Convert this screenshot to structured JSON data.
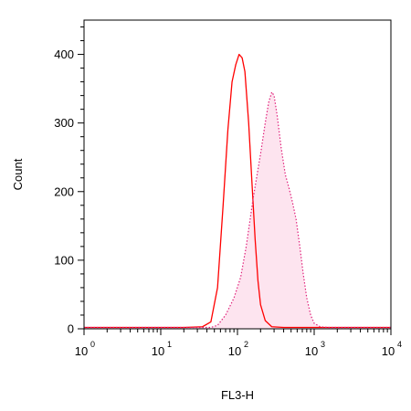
{
  "chart_data": {
    "type": "area",
    "title": "",
    "xlabel": "FL3-H",
    "ylabel": "Count",
    "x_scale": "log",
    "xlim": [
      1,
      10000
    ],
    "ylim": [
      0,
      450
    ],
    "x_ticks": [
      {
        "value": 1,
        "base": "10",
        "exp": "0"
      },
      {
        "value": 10,
        "base": "10",
        "exp": "1"
      },
      {
        "value": 100,
        "base": "10",
        "exp": "2"
      },
      {
        "value": 1000,
        "base": "10",
        "exp": "3"
      },
      {
        "value": 10000,
        "base": "10",
        "exp": "4"
      }
    ],
    "y_ticks": [
      {
        "value": 0,
        "label": "0"
      },
      {
        "value": 100,
        "label": "100"
      },
      {
        "value": 200,
        "label": "200"
      },
      {
        "value": 300,
        "label": "300"
      },
      {
        "value": 400,
        "label": "400"
      }
    ],
    "grid": false,
    "series": [
      {
        "style": "solid",
        "color": "#ff0000",
        "fill": false,
        "points": [
          [
            1,
            2
          ],
          [
            5,
            2
          ],
          [
            20,
            2
          ],
          [
            35,
            3
          ],
          [
            45,
            10
          ],
          [
            55,
            60
          ],
          [
            65,
            180
          ],
          [
            75,
            290
          ],
          [
            85,
            360
          ],
          [
            95,
            385
          ],
          [
            105,
            400
          ],
          [
            115,
            395
          ],
          [
            125,
            375
          ],
          [
            140,
            300
          ],
          [
            155,
            210
          ],
          [
            170,
            130
          ],
          [
            185,
            70
          ],
          [
            200,
            35
          ],
          [
            230,
            12
          ],
          [
            280,
            3
          ],
          [
            400,
            2
          ],
          [
            1000,
            2
          ],
          [
            10000,
            2
          ]
        ]
      },
      {
        "style": "dotted",
        "color": "#e0207a",
        "fill": true,
        "fill_color": "#fde4ef",
        "points": [
          [
            1,
            2
          ],
          [
            20,
            2
          ],
          [
            45,
            2
          ],
          [
            55,
            5
          ],
          [
            70,
            20
          ],
          [
            90,
            45
          ],
          [
            110,
            75
          ],
          [
            130,
            120
          ],
          [
            160,
            190
          ],
          [
            200,
            255
          ],
          [
            230,
            300
          ],
          [
            255,
            330
          ],
          [
            280,
            345
          ],
          [
            300,
            340
          ],
          [
            330,
            310
          ],
          [
            370,
            265
          ],
          [
            420,
            225
          ],
          [
            470,
            205
          ],
          [
            520,
            185
          ],
          [
            580,
            160
          ],
          [
            650,
            120
          ],
          [
            720,
            80
          ],
          [
            800,
            45
          ],
          [
            900,
            20
          ],
          [
            1000,
            8
          ],
          [
            1200,
            3
          ],
          [
            1500,
            2
          ],
          [
            10000,
            2
          ]
        ]
      }
    ]
  }
}
